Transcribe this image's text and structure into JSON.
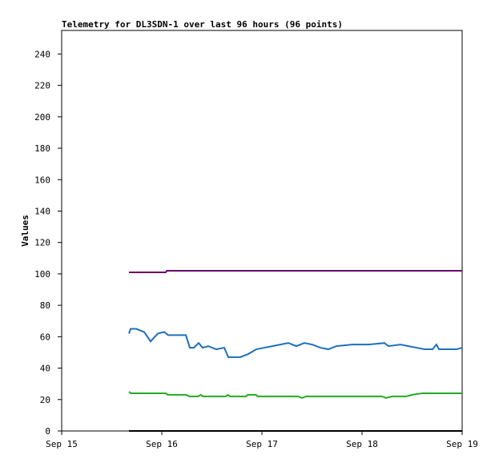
{
  "chart_data": {
    "type": "line",
    "title": "Telemetry for DL3SDN-1 over last 96 hours (96 points)",
    "y_label": "Values",
    "xlim": [
      0,
      4
    ],
    "xticks": [
      {
        "value": 0,
        "label": "Sep 15"
      },
      {
        "value": 1,
        "label": "Sep 16"
      },
      {
        "value": 2,
        "label": "Sep 17"
      },
      {
        "value": 3,
        "label": "Sep 18"
      },
      {
        "value": 4,
        "label": "Sep 19"
      }
    ],
    "ylim": [
      0,
      255
    ],
    "yticks": [
      0,
      20,
      40,
      60,
      80,
      100,
      120,
      140,
      160,
      180,
      200,
      220,
      240
    ],
    "grid": false,
    "series": [
      {
        "color": "#660066",
        "x": [
          0.672,
          1.04,
          1.05,
          4.0
        ],
        "values": [
          101,
          101,
          102,
          102
        ]
      },
      {
        "color": "#1f6fbf",
        "x": [
          0.672,
          0.688,
          0.744,
          0.824,
          0.888,
          0.96,
          1.024,
          1.064,
          1.24,
          1.28,
          1.32,
          1.368,
          1.408,
          1.464,
          1.544,
          1.624,
          1.664,
          1.784,
          1.864,
          1.944,
          2.024,
          2.104,
          2.184,
          2.264,
          2.344,
          2.424,
          2.504,
          2.584,
          2.664,
          2.744,
          2.904,
          3.064,
          3.224,
          3.264,
          3.384,
          3.464,
          3.544,
          3.624,
          3.704,
          3.744,
          3.768,
          3.864,
          3.944,
          4.0
        ],
        "values": [
          62,
          65,
          65,
          63,
          57,
          62,
          63,
          61,
          61,
          53,
          53,
          56,
          53,
          54,
          52,
          53,
          47,
          47,
          49,
          52,
          53,
          54,
          55,
          56,
          54,
          56,
          55,
          53,
          52,
          54,
          55,
          55,
          56,
          54,
          55,
          54,
          53,
          52,
          52,
          55,
          52,
          52,
          52,
          53
        ]
      },
      {
        "color": "#22aa22",
        "x": [
          0.672,
          0.69,
          1.04,
          1.06,
          1.24,
          1.28,
          1.36,
          1.39,
          1.41,
          1.64,
          1.66,
          1.68,
          1.84,
          1.86,
          1.94,
          1.96,
          2.36,
          2.4,
          2.44,
          3.2,
          3.24,
          3.3,
          3.44,
          3.5,
          3.6,
          4.0
        ],
        "values": [
          25,
          24,
          24,
          23,
          23,
          22,
          22,
          23,
          22,
          22,
          23,
          22,
          22,
          23,
          23,
          22,
          22,
          21,
          22,
          22,
          21,
          22,
          22,
          23,
          24,
          24
        ]
      },
      {
        "color": "#000000",
        "x": [
          0.672,
          4.0
        ],
        "values": [
          0,
          0
        ]
      }
    ]
  }
}
